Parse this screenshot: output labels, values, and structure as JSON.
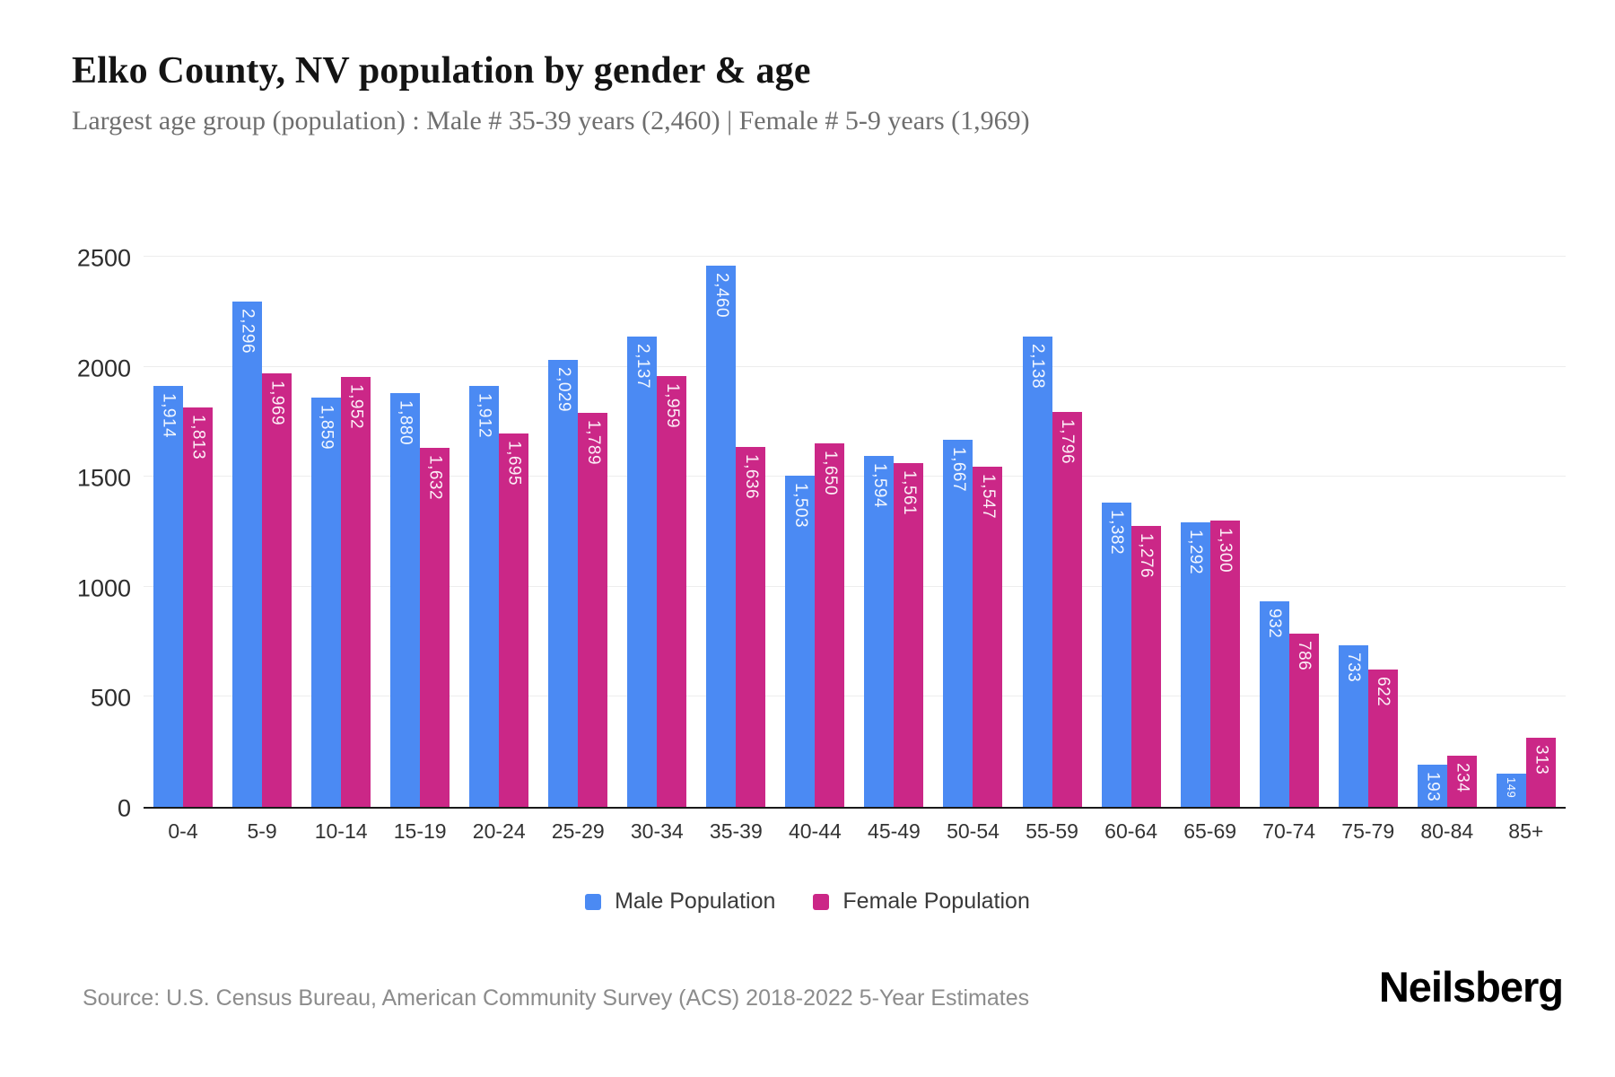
{
  "header": {
    "title": "Elko County, NV population by gender & age",
    "subtitle": "Largest age group (population) : Male # 35-39 years (2,460) | Female # 5-9 years (1,969)"
  },
  "chart_data": {
    "type": "bar",
    "title": "Elko County, NV population by gender & age",
    "categories": [
      "0-4",
      "5-9",
      "10-14",
      "15-19",
      "20-24",
      "25-29",
      "30-34",
      "35-39",
      "40-44",
      "45-49",
      "50-54",
      "55-59",
      "60-64",
      "65-69",
      "70-74",
      "75-79",
      "80-84",
      "85+"
    ],
    "series": [
      {
        "name": "Male Population",
        "color": "#4b8af3",
        "values": [
          1914,
          2296,
          1859,
          1880,
          1912,
          2029,
          2137,
          2460,
          1503,
          1594,
          1667,
          2138,
          1382,
          1292,
          932,
          733,
          193,
          149
        ]
      },
      {
        "name": "Female Population",
        "color": "#cb2787",
        "values": [
          1813,
          1969,
          1952,
          1632,
          1695,
          1789,
          1959,
          1636,
          1650,
          1561,
          1547,
          1796,
          1276,
          1300,
          786,
          622,
          234,
          313
        ]
      }
    ],
    "xlabel": "",
    "ylabel": "",
    "ylim": [
      0,
      2500
    ],
    "yticks": [
      0,
      500,
      1000,
      1500,
      2000,
      2500
    ],
    "grid": true,
    "legend_position": "bottom",
    "value_labels": "inside-top-rotated"
  },
  "footer": {
    "source": "Source: U.S. Census Bureau, American Community Survey (ACS) 2018-2022 5-Year Estimates",
    "brand": "Neilsberg"
  }
}
